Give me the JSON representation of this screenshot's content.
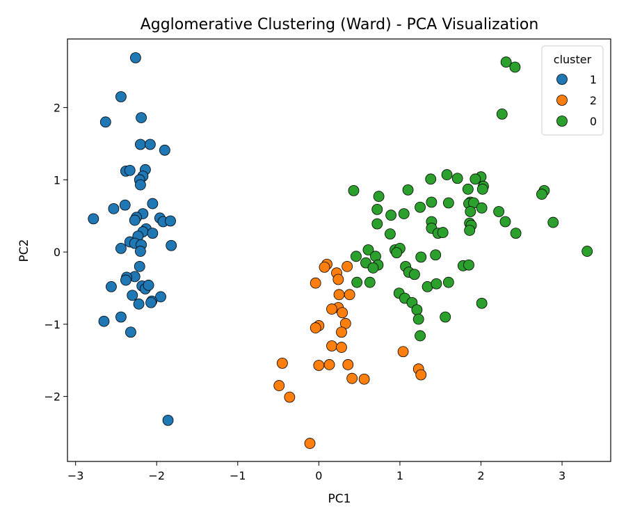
{
  "chart_data": {
    "type": "scatter",
    "title": "Agglomerative Clustering (Ward) - PCA Visualization",
    "xlabel": "PC1",
    "ylabel": "PC2",
    "xlim": [
      -3.1,
      3.6
    ],
    "ylim": [
      -2.9,
      2.95
    ],
    "xticks": [
      -3,
      -2,
      -1,
      0,
      1,
      2,
      3
    ],
    "yticks": [
      -2,
      -1,
      0,
      1,
      2
    ],
    "xtick_labels": [
      "−3",
      "−2",
      "−1",
      "0",
      "1",
      "2",
      "3"
    ],
    "ytick_labels": [
      "−2",
      "−1",
      "0",
      "1",
      "2"
    ],
    "grid": false,
    "legend": {
      "title": "cluster",
      "placement": "top-right"
    },
    "series": [
      {
        "name": "1",
        "color": "#1f77b4",
        "points": [
          [
            -2.26,
            2.69
          ],
          [
            -2.44,
            2.15
          ],
          [
            -2.19,
            1.86
          ],
          [
            -2.63,
            1.8
          ],
          [
            -2.2,
            1.49
          ],
          [
            -2.08,
            1.49
          ],
          [
            -1.9,
            1.41
          ],
          [
            -2.14,
            1.14
          ],
          [
            -2.38,
            1.12
          ],
          [
            -2.33,
            1.13
          ],
          [
            -2.17,
            1.05
          ],
          [
            -2.21,
            1.0
          ],
          [
            -2.2,
            0.93
          ],
          [
            -2.05,
            0.67
          ],
          [
            -2.53,
            0.6
          ],
          [
            -2.39,
            0.65
          ],
          [
            -2.17,
            0.53
          ],
          [
            -2.25,
            0.48
          ],
          [
            -2.78,
            0.46
          ],
          [
            -1.96,
            0.47
          ],
          [
            -2.27,
            0.44
          ],
          [
            -1.92,
            0.42
          ],
          [
            -1.83,
            0.43
          ],
          [
            -2.13,
            0.32
          ],
          [
            -2.17,
            0.28
          ],
          [
            -2.23,
            0.22
          ],
          [
            -2.05,
            0.26
          ],
          [
            -2.33,
            0.14
          ],
          [
            -2.27,
            0.12
          ],
          [
            -2.19,
            0.1
          ],
          [
            -1.82,
            0.09
          ],
          [
            -2.44,
            0.05
          ],
          [
            -2.2,
            0.01
          ],
          [
            -2.21,
            -0.2
          ],
          [
            -2.27,
            -0.34
          ],
          [
            -2.37,
            -0.35
          ],
          [
            -2.38,
            -0.39
          ],
          [
            -2.56,
            -0.48
          ],
          [
            -2.18,
            -0.47
          ],
          [
            -2.14,
            -0.51
          ],
          [
            -2.1,
            -0.46
          ],
          [
            -2.3,
            -0.6
          ],
          [
            -1.95,
            -0.62
          ],
          [
            -2.06,
            -0.68
          ],
          [
            -2.07,
            -0.7
          ],
          [
            -2.22,
            -0.72
          ],
          [
            -2.65,
            -0.96
          ],
          [
            -2.44,
            -0.9
          ],
          [
            -2.32,
            -1.11
          ],
          [
            -1.86,
            -2.33
          ]
        ]
      },
      {
        "name": "2",
        "color": "#ff7f0e",
        "points": [
          [
            0.1,
            -0.17
          ],
          [
            0.07,
            -0.21
          ],
          [
            0.35,
            -0.2
          ],
          [
            0.22,
            -0.29
          ],
          [
            0.24,
            -0.38
          ],
          [
            -0.04,
            -0.43
          ],
          [
            0.25,
            -0.59
          ],
          [
            0.38,
            -0.59
          ],
          [
            0.24,
            -0.77
          ],
          [
            0.16,
            -0.79
          ],
          [
            0.29,
            -0.84
          ],
          [
            0.33,
            -0.99
          ],
          [
            0.0,
            -1.02
          ],
          [
            -0.04,
            -1.05
          ],
          [
            0.28,
            -1.11
          ],
          [
            0.16,
            -1.3
          ],
          [
            0.28,
            -1.32
          ],
          [
            1.04,
            -1.38
          ],
          [
            -0.45,
            -1.54
          ],
          [
            0.0,
            -1.57
          ],
          [
            0.13,
            -1.56
          ],
          [
            0.36,
            -1.56
          ],
          [
            1.23,
            -1.62
          ],
          [
            1.26,
            -1.7
          ],
          [
            0.41,
            -1.75
          ],
          [
            0.56,
            -1.76
          ],
          [
            -0.49,
            -1.85
          ],
          [
            -0.36,
            -2.01
          ],
          [
            -0.11,
            -2.65
          ]
        ]
      },
      {
        "name": "0",
        "color": "#2ca02c",
        "points": [
          [
            2.31,
            2.63
          ],
          [
            2.42,
            2.56
          ],
          [
            2.26,
            1.91
          ],
          [
            1.58,
            1.07
          ],
          [
            2.0,
            1.04
          ],
          [
            1.93,
            1.01
          ],
          [
            1.71,
            1.02
          ],
          [
            1.38,
            1.01
          ],
          [
            2.03,
            0.91
          ],
          [
            2.02,
            0.87
          ],
          [
            1.84,
            0.87
          ],
          [
            1.1,
            0.86
          ],
          [
            0.43,
            0.85
          ],
          [
            2.78,
            0.85
          ],
          [
            2.75,
            0.8
          ],
          [
            0.74,
            0.77
          ],
          [
            1.39,
            0.69
          ],
          [
            1.87,
            0.69
          ],
          [
            1.85,
            0.67
          ],
          [
            1.6,
            0.68
          ],
          [
            1.91,
            0.68
          ],
          [
            1.25,
            0.62
          ],
          [
            2.01,
            0.61
          ],
          [
            0.72,
            0.59
          ],
          [
            1.87,
            0.56
          ],
          [
            2.22,
            0.56
          ],
          [
            0.89,
            0.51
          ],
          [
            1.05,
            0.53
          ],
          [
            1.39,
            0.42
          ],
          [
            1.86,
            0.4
          ],
          [
            1.88,
            0.37
          ],
          [
            0.72,
            0.39
          ],
          [
            2.3,
            0.42
          ],
          [
            2.89,
            0.41
          ],
          [
            1.39,
            0.33
          ],
          [
            1.86,
            0.3
          ],
          [
            1.47,
            0.26
          ],
          [
            1.53,
            0.27
          ],
          [
            0.88,
            0.25
          ],
          [
            2.43,
            0.26
          ],
          [
            0.61,
            0.03
          ],
          [
            0.94,
            0.03
          ],
          [
            1.0,
            0.05
          ],
          [
            0.96,
            -0.01
          ],
          [
            3.31,
            0.01
          ],
          [
            0.46,
            -0.06
          ],
          [
            0.7,
            -0.06
          ],
          [
            1.26,
            -0.07
          ],
          [
            1.44,
            -0.04
          ],
          [
            0.58,
            -0.15
          ],
          [
            0.73,
            -0.18
          ],
          [
            1.07,
            -0.2
          ],
          [
            0.67,
            -0.22
          ],
          [
            1.78,
            -0.19
          ],
          [
            1.85,
            -0.18
          ],
          [
            1.11,
            -0.28
          ],
          [
            1.18,
            -0.31
          ],
          [
            0.47,
            -0.42
          ],
          [
            0.63,
            -0.42
          ],
          [
            1.34,
            -0.48
          ],
          [
            1.45,
            -0.44
          ],
          [
            1.6,
            -0.42
          ],
          [
            0.99,
            -0.57
          ],
          [
            1.06,
            -0.64
          ],
          [
            1.15,
            -0.7
          ],
          [
            2.01,
            -0.71
          ],
          [
            1.21,
            -0.8
          ],
          [
            1.23,
            -0.93
          ],
          [
            1.56,
            -0.9
          ],
          [
            1.25,
            -1.16
          ]
        ]
      }
    ]
  }
}
